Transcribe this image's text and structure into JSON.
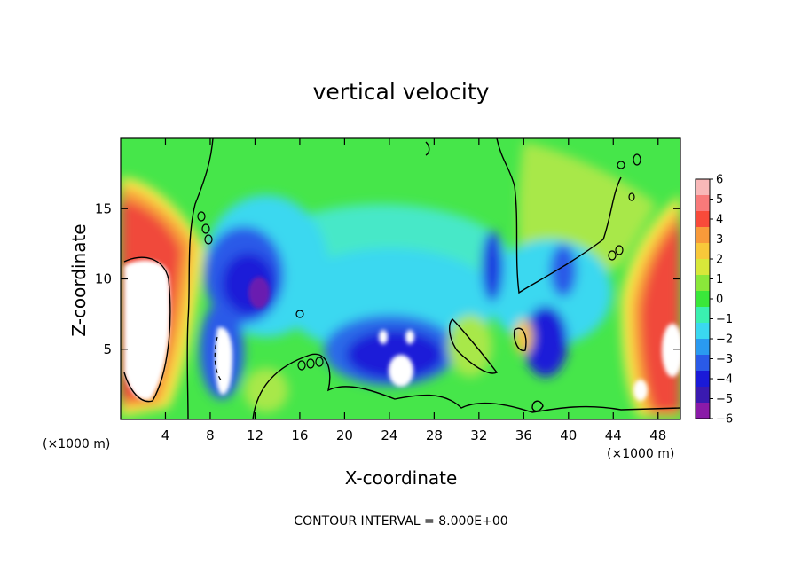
{
  "chart_data": {
    "type": "heatmap",
    "title": "vertical velocity",
    "xlabel": "X-coordinate",
    "ylabel": "Z-coordinate",
    "x_unit_label": "(×1000 m)",
    "y_unit_label": "(×1000 m)",
    "xlim": [
      0,
      50
    ],
    "ylim": [
      0,
      20
    ],
    "x_ticks": [
      4,
      8,
      12,
      16,
      20,
      24,
      28,
      32,
      36,
      40,
      44,
      48
    ],
    "y_ticks": [
      5,
      10,
      15
    ],
    "colorbar": {
      "min": -6,
      "max": 6,
      "ticks": [
        6,
        5,
        4,
        3,
        2,
        1,
        0,
        -1,
        -2,
        -3,
        -4,
        -5,
        -6
      ],
      "colors": [
        "#8a1aa8",
        "#3a1ab0",
        "#1a1ad8",
        "#2a5ae8",
        "#2a9af0",
        "#3ad8f0",
        "#3af0b0",
        "#3ae83a",
        "#8ae83a",
        "#d8e83a",
        "#f8c83a",
        "#f89a3a",
        "#f84a3a",
        "#f87a7a",
        "#f8b8b8"
      ]
    },
    "footer_text": "CONTOUR INTERVAL = 8.000E+00",
    "features": [
      {
        "kind": "updraft",
        "x": 2.5,
        "z": 12,
        "value": 5
      },
      {
        "kind": "updraft",
        "x": 2.5,
        "z": 6,
        "value": 6
      },
      {
        "kind": "updraft",
        "x": 47,
        "z": 8,
        "value": 5
      },
      {
        "kind": "updraft",
        "x": 48,
        "z": 4,
        "value": 6
      },
      {
        "kind": "downdraft",
        "x": 10.5,
        "z": 10,
        "value": -5
      },
      {
        "kind": "downdraft",
        "x": 9,
        "z": 5,
        "value": -5
      },
      {
        "kind": "downdraft",
        "x": 24,
        "z": 5,
        "value": -5
      },
      {
        "kind": "downdraft",
        "x": 38,
        "z": 5.5,
        "value": -5
      },
      {
        "kind": "downdraft",
        "x": 33,
        "z": 9.5,
        "value": -4
      }
    ]
  }
}
